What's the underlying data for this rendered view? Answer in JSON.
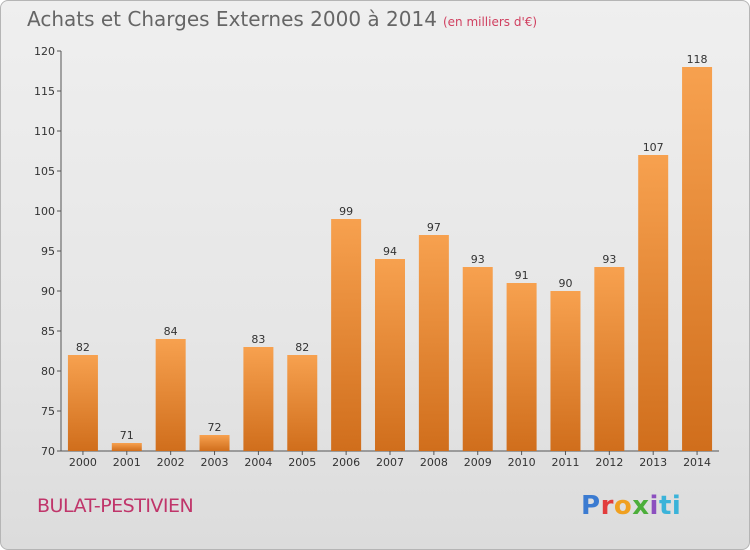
{
  "title": "Achats et Charges Externes 2000 à 2014",
  "subtitle": "(en milliers d'€)",
  "commune": "BULAT-PESTIVIEN",
  "logo": {
    "parts": [
      "P",
      "r",
      "o",
      "x",
      "i",
      "ti"
    ]
  },
  "colors": {
    "bar_top": "#f7a14f",
    "bar_bottom": "#d06e1c",
    "title": "#666666",
    "commune": "#c0356a"
  },
  "chart_data": {
    "type": "bar",
    "title": "Achats et Charges Externes 2000 à 2014",
    "subtitle": "(en milliers d'€)",
    "categories": [
      "2000",
      "2001",
      "2002",
      "2003",
      "2004",
      "2005",
      "2006",
      "2007",
      "2008",
      "2009",
      "2010",
      "2011",
      "2012",
      "2013",
      "2014"
    ],
    "values": [
      82,
      71,
      84,
      72,
      83,
      82,
      99,
      94,
      97,
      93,
      91,
      90,
      93,
      107,
      118
    ],
    "xlabel": "",
    "ylabel": "",
    "ylim": [
      70,
      120
    ],
    "yticks": [
      70,
      75,
      80,
      85,
      90,
      95,
      100,
      105,
      110,
      115,
      120
    ],
    "grid": false,
    "data_labels": true
  }
}
